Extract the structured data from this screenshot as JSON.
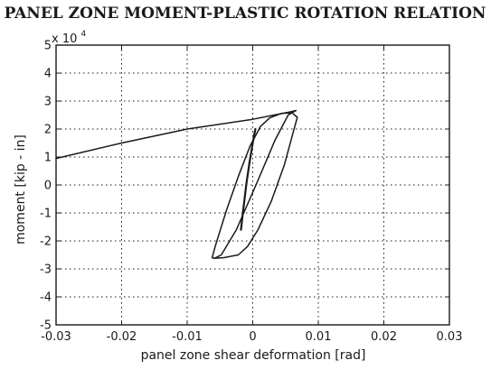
{
  "chart_data": {
    "type": "line",
    "title": "PANEL ZONE MOMENT-PLASTIC ROTATION RELATION",
    "xlabel": "panel zone shear deformation [rad]",
    "ylabel": "moment  [kip - in]",
    "y_multiplier_base": "x 10",
    "y_multiplier_exponent": "4",
    "xlim": [
      -0.03,
      0.03
    ],
    "ylim": [
      -5,
      5
    ],
    "x_ticks": [
      -0.03,
      -0.02,
      -0.01,
      0,
      0.01,
      0.02,
      0.03
    ],
    "x_tick_labels": [
      "-0.03",
      "-0.02",
      "-0.01",
      "0",
      "0.01",
      "0.02",
      "0.03"
    ],
    "y_ticks": [
      -5,
      -4,
      -3,
      -2,
      -1,
      0,
      1,
      2,
      3,
      4,
      5
    ],
    "y_tick_labels": [
      "-5",
      "-4",
      "-3",
      "-2",
      "-1",
      "0",
      "1",
      "2",
      "3",
      "4",
      "5"
    ],
    "grid": true,
    "grid_style": "dotted",
    "line_color": "#1a1a1a",
    "series": [
      {
        "points": [
          [
            -0.03,
            0.95
          ],
          [
            -0.02,
            1.5
          ],
          [
            -0.01,
            2.0
          ],
          [
            0.0,
            2.35
          ],
          [
            0.0058,
            2.62
          ],
          [
            0.0066,
            2.66
          ]
        ]
      },
      {
        "points": [
          [
            0.0066,
            2.66
          ],
          [
            0.0054,
            2.5
          ],
          [
            0.0034,
            1.6
          ],
          [
            0.0005,
            0.0
          ],
          [
            -0.0025,
            -1.6
          ],
          [
            -0.0048,
            -2.5
          ],
          [
            -0.0058,
            -2.62
          ],
          [
            -0.0062,
            -2.6
          ],
          [
            -0.0056,
            -2.1
          ],
          [
            -0.004,
            -0.9
          ],
          [
            -0.0022,
            0.3
          ],
          [
            -0.0004,
            1.4
          ],
          [
            0.0012,
            2.1
          ],
          [
            0.0026,
            2.4
          ],
          [
            0.0044,
            2.56
          ],
          [
            0.006,
            2.58
          ],
          [
            0.0068,
            2.42
          ],
          [
            0.0062,
            1.9
          ],
          [
            0.0048,
            0.7
          ],
          [
            0.0028,
            -0.6
          ],
          [
            0.0008,
            -1.6
          ],
          [
            -0.0008,
            -2.2
          ],
          [
            -0.0022,
            -2.5
          ],
          [
            -0.0045,
            -2.6
          ],
          [
            -0.006,
            -2.62
          ]
        ]
      },
      {
        "points": [
          [
            -0.0018,
            -1.6
          ],
          [
            -0.0015,
            -1.0
          ],
          [
            -0.001,
            0.0
          ],
          [
            -0.0005,
            0.8
          ],
          [
            0.0,
            1.5
          ],
          [
            0.0004,
            2.0
          ]
        ]
      }
    ]
  }
}
